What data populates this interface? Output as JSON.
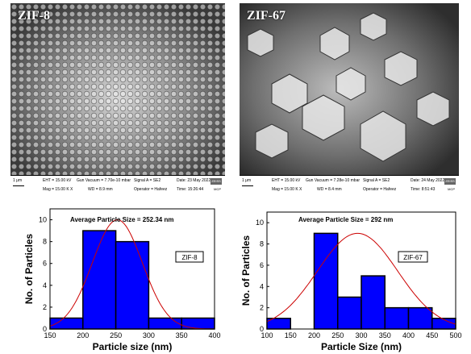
{
  "panels": [
    {
      "label": "ZIF-8",
      "info": {
        "scale": "1 μm",
        "eht": "EHT = 15.00 kV",
        "vacuum": "Gun Vacuum = 7.70e-10 mbar",
        "signal": "Signal A = SE2",
        "date": "Date: 23 May 2022",
        "mag": "Mag = 15.00 K X",
        "wd": "WD = 8.9 mm",
        "operator": "Operator = Hafeez",
        "time": "Time: 15:26:44",
        "logo": "ZEISS",
        "mcp": "MCP"
      }
    },
    {
      "label": "ZIF-67",
      "info": {
        "scale": "1 μm",
        "eht": "EHT = 15.00 kV",
        "vacuum": "Gun Vacuum = 7.28e-10 mbar",
        "signal": "Signal A = SE2",
        "date": "Date: 24 May 2022",
        "mag": "Mag = 15.00 K X",
        "wd": "WD = 8.4 mm",
        "operator": "Operator = Hafeez",
        "time": "Time: 8:51:43",
        "logo": "ZEISS",
        "mcp": "MCP"
      }
    }
  ],
  "chart_data": [
    {
      "type": "bar",
      "bins": [
        [
          150,
          200
        ],
        [
          200,
          250
        ],
        [
          250,
          300
        ],
        [
          300,
          350
        ],
        [
          350,
          400
        ]
      ],
      "values": [
        1,
        9,
        8,
        1,
        1
      ],
      "fit": {
        "mean": 252.34,
        "sd": 38,
        "peak": 10
      },
      "title": "Average Particle Size = 252.34 nm",
      "legend": "ZIF-8",
      "xlabel": "Particle size (nm)",
      "ylabel": "No. of Particles",
      "xlim": [
        150,
        400
      ],
      "ylim": [
        0,
        11
      ],
      "xticks": [
        150,
        200,
        250,
        300,
        350,
        400
      ],
      "yticks": [
        0,
        2,
        4,
        6,
        8,
        10
      ],
      "colors": {
        "bar": "#0000ff",
        "fit": "#cc0000"
      }
    },
    {
      "type": "bar",
      "bins": [
        [
          100,
          150
        ],
        [
          150,
          200
        ],
        [
          200,
          250
        ],
        [
          250,
          300
        ],
        [
          300,
          350
        ],
        [
          350,
          400
        ],
        [
          400,
          450
        ],
        [
          450,
          500
        ]
      ],
      "values": [
        1,
        0,
        9,
        3,
        5,
        2,
        2,
        1
      ],
      "fit": {
        "mean": 292,
        "sd": 85,
        "peak": 9
      },
      "title": "Average Particle Size = 292 nm",
      "legend": "ZIF-67",
      "xlabel": "Particle Size (nm)",
      "ylabel": "No. of Particles",
      "xlim": [
        100,
        500
      ],
      "ylim": [
        0,
        11
      ],
      "xticks": [
        100,
        150,
        200,
        250,
        300,
        350,
        400,
        450,
        500
      ],
      "yticks": [
        0,
        2,
        4,
        6,
        8,
        10
      ],
      "colors": {
        "bar": "#0000ff",
        "fit": "#cc0000"
      }
    }
  ]
}
